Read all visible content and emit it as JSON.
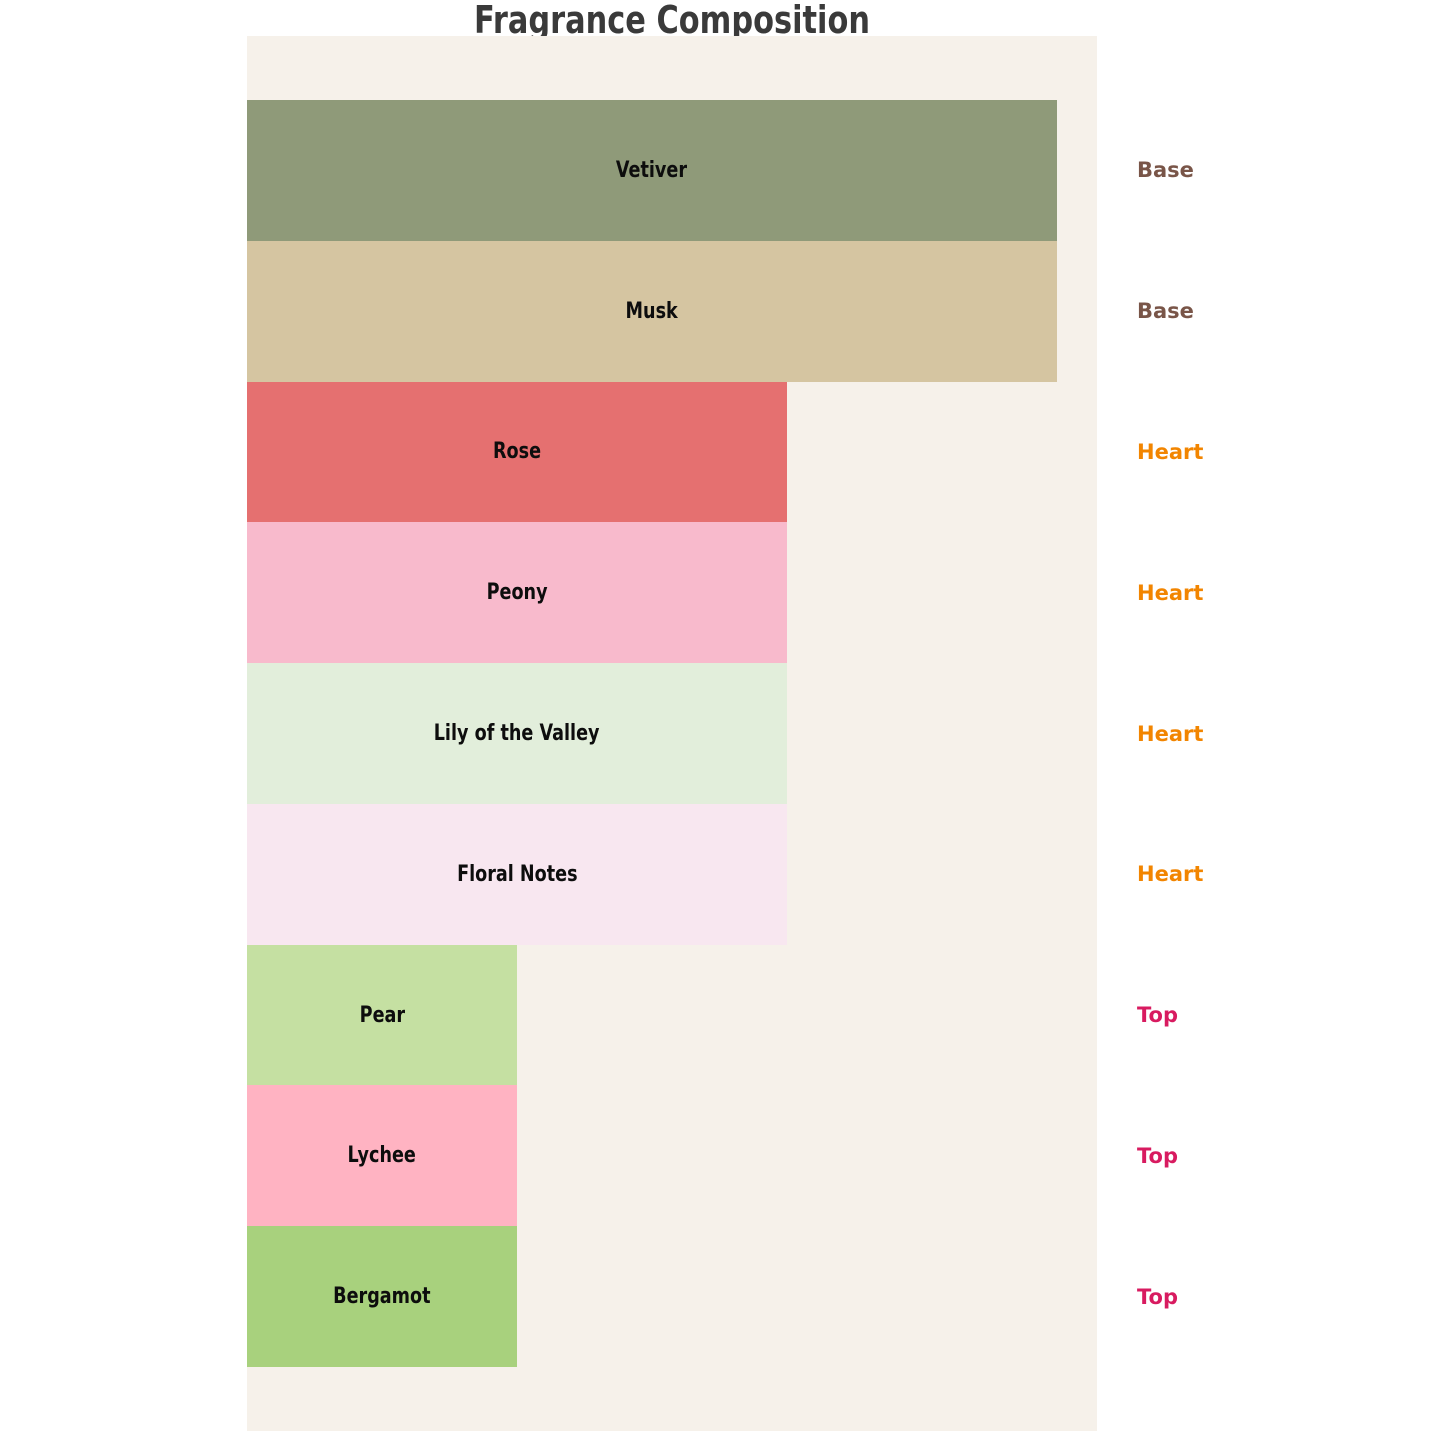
{
  "title": "Fragrance Composition",
  "colors": {
    "page_background": "#ffffff",
    "plot_background": "#f6f1ea",
    "title": "#3a3a3a",
    "bar_label": "#0d0d0d",
    "group_base": "#795548",
    "group_heart": "#f28500",
    "group_top": "#d81b60"
  },
  "chart_data": {
    "type": "bar",
    "orientation": "horizontal",
    "title": "Fragrance Composition",
    "xlabel": "",
    "ylabel": "",
    "xlim": [
      0,
      31.5
    ],
    "grid": false,
    "legend": "none",
    "axes_visible": false,
    "bar_labels_position": "inside-center",
    "group_labels_position": "right-of-plot",
    "categories": [
      "Vetiver",
      "Musk",
      "Rose",
      "Peony",
      "Lily of the Valley",
      "Floral Notes",
      "Pear",
      "Lychee",
      "Bergamot"
    ],
    "values": [
      30,
      30,
      20,
      20,
      20,
      20,
      10,
      10,
      10
    ],
    "groups": [
      "Base",
      "Base",
      "Heart",
      "Heart",
      "Heart",
      "Heart",
      "Top",
      "Top",
      "Top"
    ],
    "bar_colors": [
      "#8f9a79",
      "#d5c5a1",
      "#e57070",
      "#f8bacc",
      "#e2eedb",
      "#f8e7f0",
      "#c5e0a2",
      "#ffb3c2",
      "#a8d17d"
    ],
    "group_label_colors": {
      "Base": "#795548",
      "Heart": "#f28500",
      "Top": "#d81b60"
    }
  }
}
